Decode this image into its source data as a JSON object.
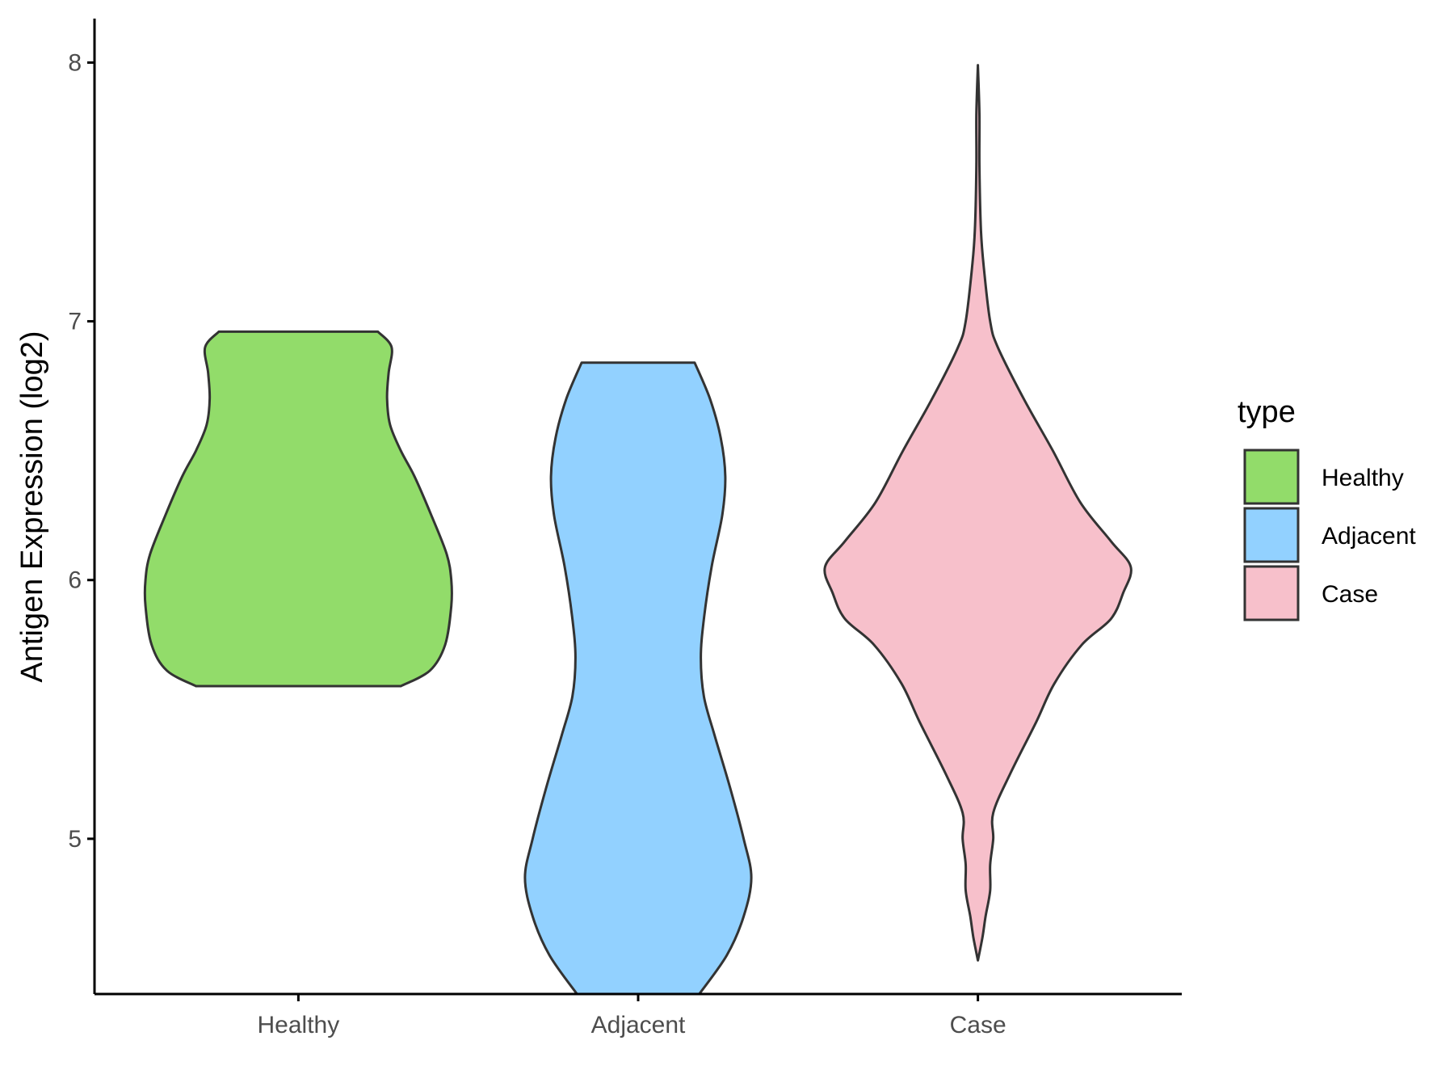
{
  "chart_data": {
    "type": "violin",
    "title": "",
    "xlabel": "",
    "ylabel": "Antigen Expression (log2)",
    "categories": [
      "Healthy",
      "Adjacent",
      "Case"
    ],
    "y_ticks": [
      5,
      6,
      7,
      8
    ],
    "ylim": [
      4.4,
      8.17
    ],
    "grid": false,
    "legend": {
      "title": "type",
      "placement": "right",
      "entries": [
        "Healthy",
        "Adjacent",
        "Case"
      ]
    },
    "colors": {
      "Healthy": "#92DC6A",
      "Adjacent": "#92D1FF",
      "Case": "#F7C0CB",
      "outline": "#333333"
    },
    "series": [
      {
        "name": "Healthy",
        "min": 5.59,
        "max": 6.96,
        "density": [
          [
            5.59,
            0.67
          ],
          [
            5.65,
            0.86
          ],
          [
            5.75,
            0.96
          ],
          [
            5.9,
            1.0
          ],
          [
            6.0,
            1.0
          ],
          [
            6.1,
            0.97
          ],
          [
            6.25,
            0.87
          ],
          [
            6.4,
            0.76
          ],
          [
            6.5,
            0.67
          ],
          [
            6.6,
            0.6
          ],
          [
            6.7,
            0.58
          ],
          [
            6.8,
            0.59
          ],
          [
            6.9,
            0.61
          ],
          [
            6.96,
            0.52
          ]
        ]
      },
      {
        "name": "Adjacent",
        "min": 4.4,
        "max": 6.84,
        "density": [
          [
            4.4,
            0.4
          ],
          [
            4.55,
            0.58
          ],
          [
            4.7,
            0.69
          ],
          [
            4.85,
            0.74
          ],
          [
            5.0,
            0.69
          ],
          [
            5.2,
            0.6
          ],
          [
            5.4,
            0.5
          ],
          [
            5.55,
            0.43
          ],
          [
            5.7,
            0.41
          ],
          [
            5.85,
            0.43
          ],
          [
            6.05,
            0.48
          ],
          [
            6.25,
            0.55
          ],
          [
            6.4,
            0.57
          ],
          [
            6.55,
            0.54
          ],
          [
            6.7,
            0.47
          ],
          [
            6.84,
            0.37
          ]
        ]
      },
      {
        "name": "Case",
        "min": 4.53,
        "max": 7.99,
        "density": [
          [
            4.53,
            0.0
          ],
          [
            4.62,
            0.03
          ],
          [
            4.7,
            0.05
          ],
          [
            4.8,
            0.08
          ],
          [
            4.9,
            0.08
          ],
          [
            5.0,
            0.1
          ],
          [
            5.1,
            0.1
          ],
          [
            5.25,
            0.21
          ],
          [
            5.45,
            0.38
          ],
          [
            5.6,
            0.5
          ],
          [
            5.75,
            0.68
          ],
          [
            5.85,
            0.87
          ],
          [
            5.95,
            0.95
          ],
          [
            6.05,
            1.0
          ],
          [
            6.15,
            0.87
          ],
          [
            6.3,
            0.67
          ],
          [
            6.5,
            0.49
          ],
          [
            6.7,
            0.3
          ],
          [
            6.9,
            0.13
          ],
          [
            7.0,
            0.08
          ],
          [
            7.2,
            0.04
          ],
          [
            7.35,
            0.02
          ],
          [
            7.6,
            0.01
          ],
          [
            7.8,
            0.01
          ],
          [
            7.99,
            0.0
          ]
        ]
      }
    ]
  }
}
